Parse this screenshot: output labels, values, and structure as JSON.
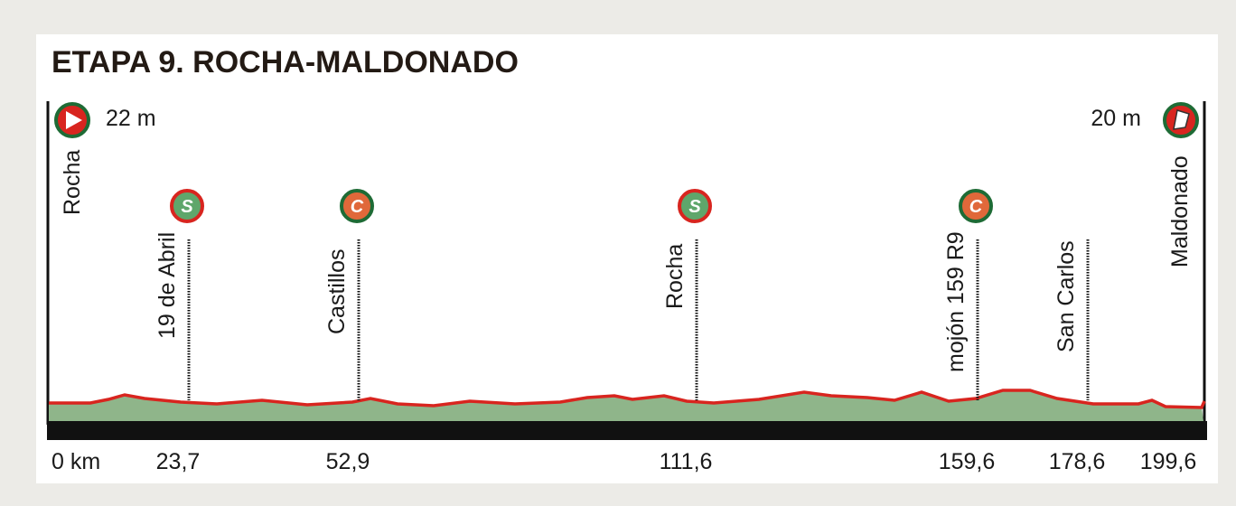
{
  "title": "ETAPA 9. ROCHA-MALDONADO",
  "start": {
    "name": "Rocha",
    "elevation": "22 m",
    "km": "0 km"
  },
  "finish": {
    "name": "Maldonado",
    "elevation": "20 m",
    "km": "199,6"
  },
  "waypoints": [
    {
      "name": "19 de Abril",
      "km": "23,7",
      "icon": "S"
    },
    {
      "name": "Castillos",
      "km": "52,9",
      "icon": "C"
    },
    {
      "name": "Rocha",
      "km": "111,6",
      "icon": "S"
    },
    {
      "name": "mojón 159 R9",
      "km": "159,6",
      "icon": "C"
    },
    {
      "name": "San Carlos",
      "km": "178,6"
    }
  ]
}
